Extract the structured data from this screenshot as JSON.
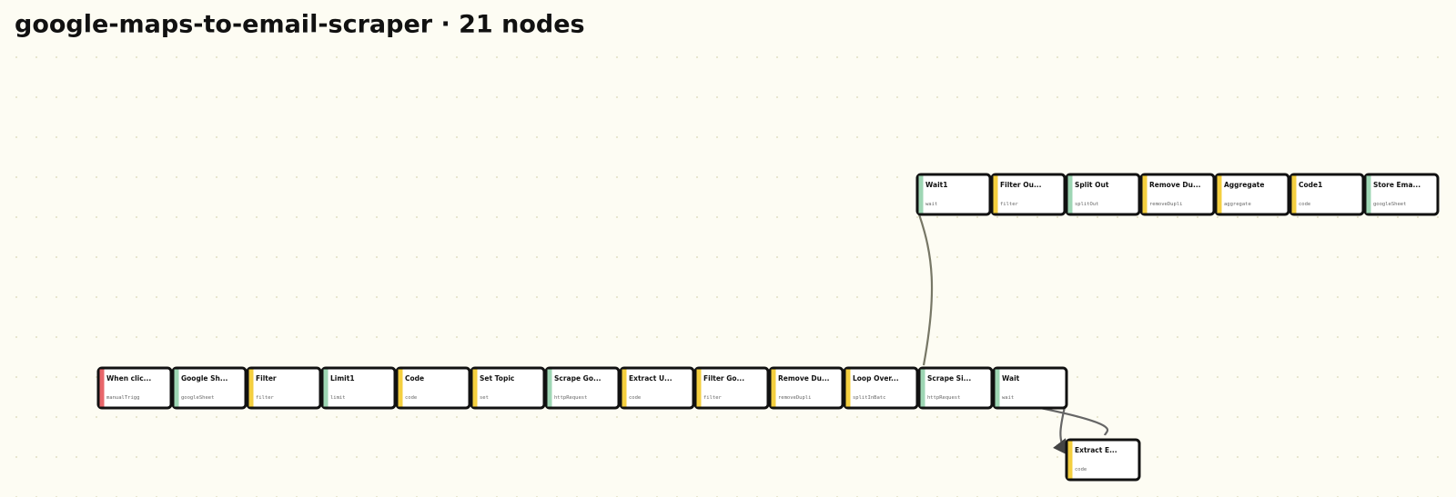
{
  "title": "google-maps-to-email-scraper  ·  21 nodes",
  "nodes": [
    {
      "label": "When clic...",
      "type": "manualTrigg",
      "color": "#e8666a"
    },
    {
      "label": "Google Sh...",
      "type": "googleSheet",
      "color": "#9ed6b4"
    },
    {
      "label": "Filter",
      "type": "filter",
      "color": "#f4cf3f"
    },
    {
      "label": "Limit1",
      "type": "limit",
      "color": "#9ed6b4"
    },
    {
      "label": "Code",
      "type": "code",
      "color": "#f4cf3f"
    },
    {
      "label": "Set Topic",
      "type": "set",
      "color": "#f4cf3f"
    },
    {
      "label": "Scrape Go...",
      "type": "httpRequest",
      "color": "#9ed6b4"
    },
    {
      "label": "Extract U...",
      "type": "code",
      "color": "#f4cf3f"
    },
    {
      "label": "Filter Go...",
      "type": "filter",
      "color": "#f4cf3f"
    },
    {
      "label": "Remove Du...",
      "type": "removeDupli",
      "color": "#f4cf3f"
    },
    {
      "label": "Loop Over...",
      "type": "splitInBatc",
      "color": "#f4cf3f"
    },
    {
      "label": "Scrape Si...",
      "type": "httpRequest",
      "color": "#9ed6b4"
    },
    {
      "label": "Wait",
      "type": "wait",
      "color": "#9ed6b4"
    },
    {
      "label": "Wait1",
      "type": "wait",
      "color": "#9ed6b4"
    },
    {
      "label": "Filter Ou...",
      "type": "filter",
      "color": "#f4cf3f"
    },
    {
      "label": "Split Out",
      "type": "splitOut",
      "color": "#9ed6b4"
    },
    {
      "label": "Remove Du...",
      "type": "removeDupli",
      "color": "#f4cf3f"
    },
    {
      "label": "Aggregate",
      "type": "aggregate",
      "color": "#f4cf3f"
    },
    {
      "label": "Code1",
      "type": "code",
      "color": "#f4cf3f"
    },
    {
      "label": "Store Ema...",
      "type": "googleSheet",
      "color": "#9ed6b4"
    },
    {
      "label": "Extract E...",
      "type": "code",
      "color": "#f4cf3f"
    }
  ]
}
